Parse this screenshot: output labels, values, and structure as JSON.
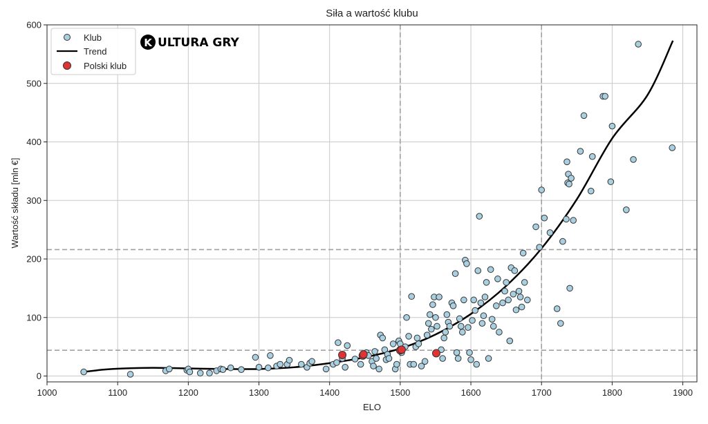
{
  "chart_data": {
    "type": "scatter",
    "title": "Siła a wartość klubu",
    "xlabel": "ELO",
    "ylabel": "Wartość składu [mln €]",
    "xlim": [
      1000,
      1920
    ],
    "ylim": [
      -10,
      600
    ],
    "xticks": [
      1000,
      1100,
      1200,
      1300,
      1400,
      1500,
      1600,
      1700,
      1800,
      1900
    ],
    "yticks": [
      0,
      100,
      200,
      300,
      400,
      500,
      600
    ],
    "grid": true,
    "legend_position": "top-left",
    "reference_lines": {
      "x": [
        1500,
        1700
      ],
      "y": [
        44,
        216
      ]
    },
    "logo_text": "KULTURA GRY",
    "colors": {
      "club_fill": "#a9cfe0",
      "polish_fill": "#e03434",
      "trend": "#000000",
      "ref_line": "#a0a0a0"
    },
    "series": [
      {
        "name": "Klub",
        "kind": "points",
        "points": [
          [
            1052,
            7
          ],
          [
            1118,
            3
          ],
          [
            1168,
            9
          ],
          [
            1173,
            12
          ],
          [
            1198,
            10
          ],
          [
            1200,
            12
          ],
          [
            1202,
            7
          ],
          [
            1217,
            5
          ],
          [
            1230,
            5
          ],
          [
            1240,
            9
          ],
          [
            1246,
            12
          ],
          [
            1249,
            11
          ],
          [
            1260,
            14
          ],
          [
            1275,
            11
          ],
          [
            1295,
            32
          ],
          [
            1300,
            15
          ],
          [
            1313,
            14
          ],
          [
            1316,
            35
          ],
          [
            1325,
            17
          ],
          [
            1330,
            20
          ],
          [
            1340,
            20
          ],
          [
            1343,
            27
          ],
          [
            1360,
            20
          ],
          [
            1368,
            15
          ],
          [
            1372,
            22
          ],
          [
            1375,
            25
          ],
          [
            1395,
            12
          ],
          [
            1405,
            20
          ],
          [
            1410,
            23
          ],
          [
            1412,
            57
          ],
          [
            1418,
            30
          ],
          [
            1422,
            15
          ],
          [
            1425,
            52
          ],
          [
            1436,
            29
          ],
          [
            1444,
            20
          ],
          [
            1452,
            40
          ],
          [
            1455,
            35
          ],
          [
            1460,
            25
          ],
          [
            1462,
            17
          ],
          [
            1464,
            42
          ],
          [
            1466,
            30
          ],
          [
            1470,
            12
          ],
          [
            1472,
            70
          ],
          [
            1475,
            65
          ],
          [
            1478,
            45
          ],
          [
            1480,
            28
          ],
          [
            1482,
            37
          ],
          [
            1484,
            30
          ],
          [
            1490,
            55
          ],
          [
            1493,
            12
          ],
          [
            1495,
            20
          ],
          [
            1498,
            60
          ],
          [
            1500,
            55
          ],
          [
            1502,
            40
          ],
          [
            1507,
            50
          ],
          [
            1509,
            100
          ],
          [
            1512,
            68
          ],
          [
            1514,
            20
          ],
          [
            1516,
            136
          ],
          [
            1519,
            20
          ],
          [
            1522,
            50
          ],
          [
            1524,
            65
          ],
          [
            1526,
            55
          ],
          [
            1530,
            17
          ],
          [
            1535,
            25
          ],
          [
            1538,
            70
          ],
          [
            1540,
            90
          ],
          [
            1542,
            105
          ],
          [
            1544,
            80
          ],
          [
            1546,
            122
          ],
          [
            1548,
            135
          ],
          [
            1550,
            100
          ],
          [
            1552,
            85
          ],
          [
            1555,
            135
          ],
          [
            1558,
            45
          ],
          [
            1560,
            30
          ],
          [
            1562,
            65
          ],
          [
            1564,
            75
          ],
          [
            1566,
            105
          ],
          [
            1568,
            92
          ],
          [
            1570,
            85
          ],
          [
            1573,
            125
          ],
          [
            1575,
            120
          ],
          [
            1578,
            175
          ],
          [
            1580,
            40
          ],
          [
            1582,
            30
          ],
          [
            1584,
            98
          ],
          [
            1586,
            85
          ],
          [
            1588,
            75
          ],
          [
            1590,
            130
          ],
          [
            1592,
            198
          ],
          [
            1594,
            192
          ],
          [
            1596,
            83
          ],
          [
            1598,
            40
          ],
          [
            1600,
            28
          ],
          [
            1602,
            95
          ],
          [
            1604,
            130
          ],
          [
            1606,
            112
          ],
          [
            1608,
            20
          ],
          [
            1610,
            180
          ],
          [
            1612,
            273
          ],
          [
            1614,
            125
          ],
          [
            1616,
            90
          ],
          [
            1618,
            103
          ],
          [
            1620,
            135
          ],
          [
            1622,
            160
          ],
          [
            1625,
            30
          ],
          [
            1628,
            182
          ],
          [
            1630,
            97
          ],
          [
            1632,
            85
          ],
          [
            1636,
            120
          ],
          [
            1638,
            166
          ],
          [
            1640,
            75
          ],
          [
            1645,
            125
          ],
          [
            1648,
            145
          ],
          [
            1650,
            160
          ],
          [
            1653,
            130
          ],
          [
            1655,
            60
          ],
          [
            1657,
            185
          ],
          [
            1660,
            140
          ],
          [
            1662,
            180
          ],
          [
            1664,
            113
          ],
          [
            1668,
            145
          ],
          [
            1670,
            135
          ],
          [
            1672,
            118
          ],
          [
            1674,
            210
          ],
          [
            1676,
            160
          ],
          [
            1680,
            130
          ],
          [
            1692,
            255
          ],
          [
            1697,
            220
          ],
          [
            1700,
            318
          ],
          [
            1704,
            270
          ],
          [
            1712,
            245
          ],
          [
            1722,
            115
          ],
          [
            1727,
            90
          ],
          [
            1730,
            230
          ],
          [
            1735,
            268
          ],
          [
            1736,
            366
          ],
          [
            1737,
            330
          ],
          [
            1738,
            345
          ],
          [
            1739,
            328
          ],
          [
            1740,
            150
          ],
          [
            1742,
            338
          ],
          [
            1745,
            266
          ],
          [
            1755,
            384
          ],
          [
            1760,
            445
          ],
          [
            1770,
            316
          ],
          [
            1772,
            375
          ],
          [
            1787,
            478
          ],
          [
            1790,
            478
          ],
          [
            1798,
            332
          ],
          [
            1800,
            427
          ],
          [
            1820,
            284
          ],
          [
            1830,
            370
          ],
          [
            1837,
            567
          ],
          [
            1885,
            390
          ]
        ]
      },
      {
        "name": "Trend",
        "kind": "line",
        "points": [
          [
            1052,
            7
          ],
          [
            1080,
            11
          ],
          [
            1110,
            13
          ],
          [
            1150,
            14
          ],
          [
            1200,
            13
          ],
          [
            1250,
            12
          ],
          [
            1300,
            12
          ],
          [
            1350,
            15
          ],
          [
            1400,
            22
          ],
          [
            1450,
            32
          ],
          [
            1500,
            47
          ],
          [
            1550,
            71
          ],
          [
            1600,
            106
          ],
          [
            1650,
            154
          ],
          [
            1700,
            218
          ],
          [
            1750,
            302
          ],
          [
            1800,
            406
          ],
          [
            1850,
            480
          ],
          [
            1886,
            573
          ]
        ]
      },
      {
        "name": "Polski klub",
        "kind": "points",
        "points": [
          [
            1418,
            36
          ],
          [
            1447,
            35
          ],
          [
            1448,
            37
          ],
          [
            1500,
            44
          ],
          [
            1502,
            45
          ],
          [
            1551,
            39
          ]
        ]
      }
    ]
  }
}
